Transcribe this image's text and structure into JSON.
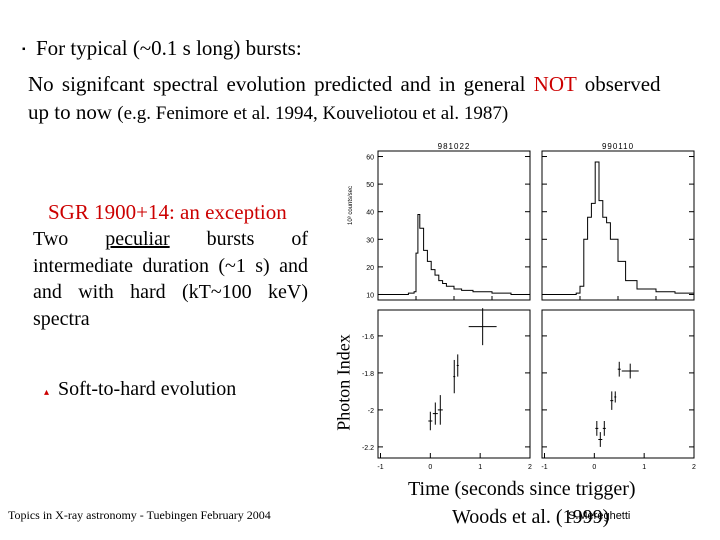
{
  "intro": {
    "bullet": "▪",
    "line1": "For typical (~0.1 s long) bursts:",
    "line2_before": "No signifcant spectral evolution predicted and in general",
    "line2_highlight": "NOT",
    "line2_after": "observed",
    "line3_start": "up to now",
    "line3_refs": "(e.g. Fenimore et al. 1994, Kouveliotou et al. 1987)"
  },
  "sgr": {
    "heading": "SGR 1900+14: an exception",
    "body_start": "Two",
    "body_underlined": "peculiar",
    "body_rest": "bursts of intermediate duration (~1 s) and and with hard (kT~100 keV) spectra"
  },
  "soft_to_hard": {
    "marker": "▴",
    "text": "Soft-to-hard evolution"
  },
  "footer": "Topics in X-ray astronomy  -  Tuebingen  February 2004",
  "figure": {
    "x_axis_label": "Time (seconds since trigger)",
    "y_axis_label": "Photon Index",
    "citation": "Woods et al. (1999)",
    "author": "S.Mereghetti",
    "color_accent": "#cc0000"
  },
  "chart_data": {
    "type": "line",
    "panels": [
      {
        "title": "981022",
        "ylabel": "10³ counts/sec",
        "yticks": [
          10,
          20,
          30,
          40,
          50,
          60
        ],
        "ylim": [
          8,
          62
        ],
        "xlim": [
          -1,
          3
        ],
        "lightcurve": {
          "x": [
            -1.0,
            -0.8,
            -0.6,
            -0.4,
            -0.2,
            -0.05,
            0.0,
            0.05,
            0.1,
            0.2,
            0.3,
            0.4,
            0.5,
            0.6,
            0.7,
            0.8,
            1.0,
            1.2,
            1.5,
            2.0,
            2.5,
            3.0
          ],
          "y": [
            10,
            10,
            10,
            10,
            10.5,
            11,
            25,
            39,
            34,
            26,
            22,
            19,
            17,
            15,
            14,
            13,
            12,
            11.5,
            11,
            10.5,
            10,
            10
          ]
        }
      },
      {
        "title": "990110",
        "yticks": [
          10,
          20,
          30,
          40,
          50,
          60
        ],
        "ylim": [
          8,
          62
        ],
        "xlim": [
          -1,
          3
        ],
        "lightcurve": {
          "x": [
            -1.0,
            -0.6,
            -0.3,
            -0.1,
            0.0,
            0.1,
            0.2,
            0.3,
            0.4,
            0.5,
            0.6,
            0.7,
            0.8,
            1.0,
            1.2,
            1.5,
            2.0,
            2.5,
            3.0
          ],
          "y": [
            10,
            10,
            10,
            10.5,
            13,
            30,
            38,
            43,
            58,
            44,
            38,
            36,
            30,
            22,
            15,
            12,
            11,
            10.5,
            10
          ]
        }
      },
      {
        "ylabel": "Photon Index",
        "yticks": [
          -1.6,
          -1.8,
          -2.0,
          -2.2
        ],
        "ylim": [
          -2.26,
          -1.46
        ],
        "xticks": [
          -1,
          0,
          1,
          2
        ],
        "xlim": [
          -1.05,
          2.0
        ],
        "points": [
          {
            "x": 0.0,
            "y": -2.06,
            "xerr": 0.04,
            "yerr": 0.05
          },
          {
            "x": 0.1,
            "y": -2.02,
            "xerr": 0.05,
            "yerr": 0.06
          },
          {
            "x": 0.2,
            "y": -2.0,
            "xerr": 0.05,
            "yerr": 0.08
          },
          {
            "x": 0.48,
            "y": -1.82,
            "xerr": 0.02,
            "yerr": 0.09
          },
          {
            "x": 0.55,
            "y": -1.76,
            "xerr": 0.02,
            "yerr": 0.06
          },
          {
            "x": 1.05,
            "y": -1.55,
            "xerr": 0.28,
            "yerr": 0.1
          }
        ]
      },
      {
        "yticks": [
          -1.6,
          -1.8,
          -2.0,
          -2.2
        ],
        "ylim": [
          -2.26,
          -1.46
        ],
        "xticks": [
          -1,
          0,
          1,
          2
        ],
        "xlim": [
          -1.05,
          2.0
        ],
        "points": [
          {
            "x": 0.05,
            "y": -2.1,
            "xerr": 0.03,
            "yerr": 0.04
          },
          {
            "x": 0.12,
            "y": -2.16,
            "xerr": 0.04,
            "yerr": 0.04
          },
          {
            "x": 0.2,
            "y": -2.1,
            "xerr": 0.03,
            "yerr": 0.04
          },
          {
            "x": 0.35,
            "y": -1.95,
            "xerr": 0.03,
            "yerr": 0.05
          },
          {
            "x": 0.5,
            "y": -1.78,
            "xerr": 0.03,
            "yerr": 0.04
          },
          {
            "x": 0.72,
            "y": -1.79,
            "xerr": 0.17,
            "yerr": 0.04
          },
          {
            "x": 0.42,
            "y": -1.93,
            "xerr": 0.02,
            "yerr": 0.03
          }
        ]
      }
    ]
  }
}
